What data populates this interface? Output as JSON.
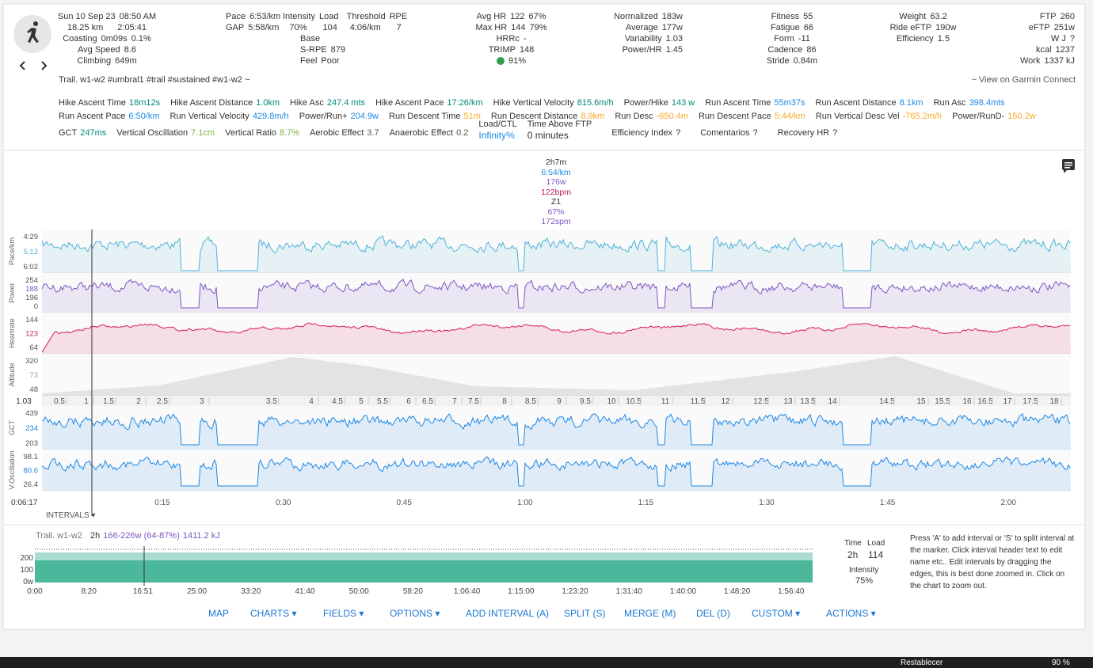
{
  "header": {
    "columns": [
      [
        [
          "Sun 10 Sep 23",
          "08:50 AM"
        ],
        [
          "18.25 km",
          "2:05:41"
        ],
        [
          "Coasting",
          "0m09s",
          "0.1%"
        ],
        [
          "Avg Speed",
          "8.6"
        ],
        [
          "Climbing",
          "649m"
        ]
      ],
      [
        [
          "Pace",
          "6:53/km"
        ],
        [
          "GAP",
          "5:58/km"
        ]
      ],
      [
        [
          "Intensity",
          "Load",
          "Threshold",
          "RPE"
        ],
        [
          "70%",
          "104",
          "4:06/km",
          "7"
        ],
        [
          "Base"
        ],
        [
          "S-RPE",
          "879"
        ],
        [
          "Feel",
          "Poor"
        ]
      ],
      [
        [
          "Avg HR",
          "122",
          "67%"
        ],
        [
          "Max HR",
          "144",
          "79%"
        ],
        [
          "HRRc",
          "-"
        ],
        [
          "TRIMP",
          "148"
        ],
        [
          "91%"
        ]
      ],
      [
        [
          "Normalized",
          "183w"
        ],
        [
          "Average",
          "177w"
        ],
        [
          "Variability",
          "1.03"
        ],
        [
          "Power/HR",
          "1.45"
        ]
      ],
      [
        [
          "Fitness",
          "55"
        ],
        [
          "Fatigue",
          "66"
        ],
        [
          "Form",
          "-11"
        ],
        [
          "Cadence",
          "86"
        ],
        [
          "Stride",
          "0.84m"
        ]
      ],
      [
        [
          "Weight",
          "63.2"
        ],
        [
          "Ride eFTP",
          "190w"
        ],
        [
          "Efficiency",
          "1.5"
        ]
      ],
      [
        [
          "FTP",
          "260"
        ],
        [
          "eFTP",
          "251w"
        ],
        [
          "W J",
          "?"
        ],
        [
          "kcal",
          "1237"
        ],
        [
          "Work",
          "1337 kJ"
        ]
      ]
    ],
    "title": "Trail. w1-w2 #umbral1 #trail #sustained #w1-w2 ~",
    "garmin": "~ View on Garmin Connect"
  },
  "fields": [
    [
      {
        "label": "Hike Ascent Time",
        "value": "18m12s",
        "color": "#00897b"
      },
      {
        "label": "Hike Ascent Distance",
        "value": "1.0km",
        "color": "#00897b"
      },
      {
        "label": "Hike Asc",
        "value": "247.4 mts",
        "color": "#00897b"
      },
      {
        "label": "Hike Ascent Pace",
        "value": "17:26/km",
        "color": "#00897b"
      },
      {
        "label": "Hike Vertical Velocity",
        "value": "815.6m/h",
        "color": "#00897b"
      },
      {
        "label": "Power/Hike",
        "value": "143 w",
        "color": "#00897b"
      },
      {
        "label": "Run Ascent Time",
        "value": "55m37s",
        "color": "#1e88e5"
      },
      {
        "label": "Run Ascent Distance",
        "value": "8.1km",
        "color": "#1e88e5"
      },
      {
        "label": "Run Asc",
        "value": "398.4mts",
        "color": "#1e88e5"
      }
    ],
    [
      {
        "label": "Run Ascent Pace",
        "value": "6:50/km",
        "color": "#1e88e5"
      },
      {
        "label": "Run Vertical Velocity",
        "value": "429.8m/h",
        "color": "#1e88e5"
      },
      {
        "label": "Power/Run+",
        "value": "204.9w",
        "color": "#1e88e5"
      },
      {
        "label": "Run Descent Time",
        "value": "51m",
        "color": "#f9a825"
      },
      {
        "label": "Run Descent Distance",
        "value": "8.9km",
        "color": "#f9a825"
      },
      {
        "label": "Run Desc",
        "value": "-650.4m",
        "color": "#f9a825"
      },
      {
        "label": "Run Descent Pace",
        "value": "5:44/km",
        "color": "#f9a825"
      },
      {
        "label": "Run Vertical Desc Vel",
        "value": "-765.2m/h",
        "color": "#f9a825"
      },
      {
        "label": "Power/RunD-",
        "value": "150.2w",
        "color": "#f9a825"
      }
    ],
    [
      {
        "label": "GCT",
        "value": "247ms",
        "color": "#00897b"
      },
      {
        "label": "Vertical Oscillation",
        "value": "7.1cm",
        "color": "#7cb342"
      },
      {
        "label": "Vertical Ratio",
        "value": "8.7%",
        "color": "#7cb342"
      },
      {
        "label": "Aerobic Effect",
        "value": "3.7",
        "color": "#555555"
      },
      {
        "label": "Anaerobic Effect",
        "value": "0.2",
        "color": "#555555"
      },
      {
        "label": "Load/CTL",
        "value": "Infinity%",
        "color": "#1e88e5"
      },
      {
        "label": "Time Above FTP",
        "value": "0 minutes",
        "color": "#333333"
      },
      {
        "label": "Efficiency Index",
        "value": "?",
        "color": "#333333"
      },
      {
        "label": "Comentarios",
        "value": "?",
        "color": "#333333"
      },
      {
        "label": "Recovery HR",
        "value": "?",
        "color": "#333333"
      }
    ]
  ],
  "tooltip": [
    {
      "text": "2h7m",
      "color": "#333333"
    },
    {
      "text": "6:54/km",
      "color": "#1e88e5"
    },
    {
      "text": "176w",
      "color": "#7e57c2"
    },
    {
      "text": "122bpm",
      "color": "#c2185b"
    },
    {
      "text": "Z1",
      "color": "#333333"
    },
    {
      "text": "67%",
      "color": "#7e57c2"
    },
    {
      "text": "172spm",
      "color": "#7e57c2"
    }
  ],
  "panels": [
    {
      "label": "Pace/km",
      "ticks": [
        "4:29",
        "5:12",
        "6:02"
      ],
      "color": "#4fb3d9"
    },
    {
      "label": "Power",
      "ticks": [
        "254",
        "188",
        "196",
        "0"
      ],
      "color": "#7e57c2"
    },
    {
      "label": "Heartrate",
      "ticks": [
        "144",
        "123",
        "64"
      ],
      "color": "#d81b60"
    },
    {
      "label": "Altitude",
      "ticks": [
        "320",
        "73",
        "48"
      ],
      "color": "#9e9e9e"
    },
    {
      "label": "GCT",
      "ticks": [
        "439",
        "234",
        "203"
      ],
      "color": "#1e88e5"
    },
    {
      "label": "V.Oscillation",
      "ticks": [
        "98.1",
        "80.6",
        "26.4"
      ],
      "color": "#1e88e5"
    }
  ],
  "distance_start": "1.03",
  "distance_ticks": [
    "0.5",
    "1",
    "1.5",
    "2",
    "2.5",
    "3",
    "3.5",
    "4",
    "4.5",
    "5",
    "5.5",
    "6",
    "6.5",
    "7",
    "7.5",
    "8",
    "8.5",
    "9",
    "9.5",
    "10",
    "10.5",
    "11",
    "11.5",
    "12",
    "12.5",
    "13",
    "13.5",
    "14",
    "14.5",
    "15",
    "15.5",
    "16",
    "16.5",
    "17",
    "17.5",
    "18"
  ],
  "time_start": "0:06:17",
  "time_ticks": [
    "0:15",
    "0:30",
    "0:45",
    "1:00",
    "1:15",
    "1:30",
    "1:45",
    "2:00"
  ],
  "intervals_label": "INTERVALS ▾",
  "interval": {
    "name": "Trail. w1-w2",
    "duration": "2h",
    "power": "166-226w (64-87%)",
    "work": "1411.2 kJ",
    "yticks": [
      "200",
      "100",
      "0w"
    ],
    "xticks": [
      "0:00",
      "8:20",
      "16:51",
      "25:00",
      "33:20",
      "41:40",
      "50:00",
      "58:20",
      "1:06:40",
      "1:15:00",
      "1:23:20",
      "1:31:40",
      "1:40:00",
      "1:48:20",
      "1:56:40"
    ],
    "time_label": "Time",
    "time": "2h",
    "load_label": "Load",
    "load": "114",
    "intensity_label": "Intensity",
    "intensity": "75%"
  },
  "help": "Press 'A' to add interval or 'S' to split interval at the marker. Click interval header text to edit name etc.. Edit intervals by dragging the edges, this is best done zoomed in. Click on the chart to zoom out.",
  "buttons": [
    "MAP",
    "CHARTS ▾",
    "FIELDS ▾",
    "OPTIONS ▾",
    "ADD INTERVAL (A)",
    "SPLIT (S)",
    "MERGE (M)",
    "DEL (D)",
    "CUSTOM ▾",
    "ACTIONS ▾"
  ],
  "taskbar": [
    "Restablecer",
    "90 %"
  ]
}
